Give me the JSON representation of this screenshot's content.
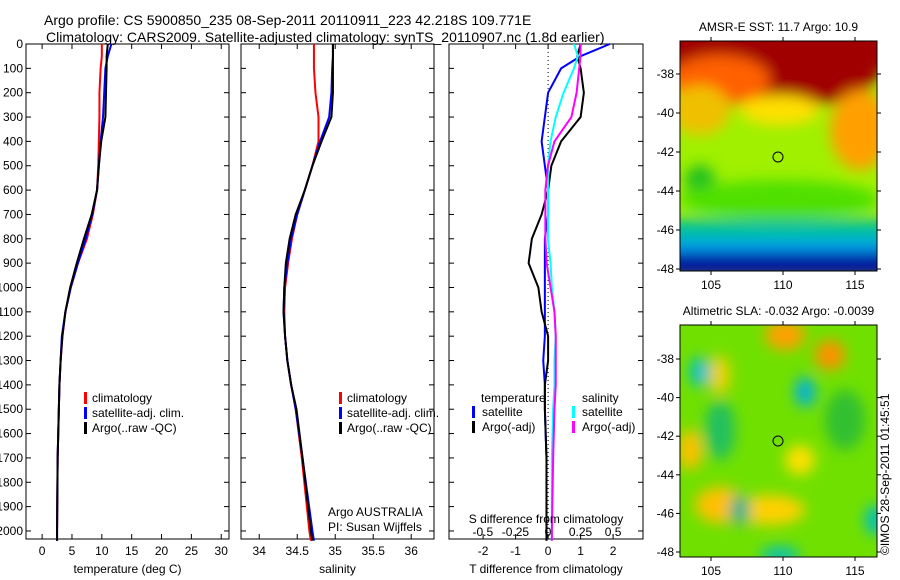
{
  "title_line1": "Argo profile: CS 5900850_235 08-Sep-2011 20110911_223 42.218S 109.771E",
  "title_line2": "Climatology: CARS2009. Satellite-adjusted climatology: synTS_20110907.nc (1.8d earlier)",
  "watermark": "©IMOS 28-Sep-2011 01:45:51",
  "colors": {
    "climatology": "#ff0000",
    "satellite": "#0000ff",
    "argo": "#000000",
    "s_satellite": "#00ffff",
    "s_argo": "#ff00ff"
  },
  "chart_data": [
    {
      "type": "line",
      "xlabel": "temperature (deg C)",
      "ylabel": "",
      "xlim": [
        -2.7,
        31.3
      ],
      "ylim": [
        2033,
        0
      ],
      "xticks": [
        0,
        5,
        10,
        15,
        20,
        25,
        30
      ],
      "yticks": [
        0,
        100,
        200,
        300,
        400,
        500,
        600,
        700,
        800,
        900,
        1000,
        1100,
        1200,
        1300,
        1400,
        1500,
        1600,
        1700,
        1800,
        1900,
        2000
      ],
      "legend": [
        "climatology",
        "satellite-adj. clim.",
        "Argo(..raw -QC)"
      ],
      "legend_placement": "lower-center",
      "depth": [
        0,
        50,
        100,
        200,
        300,
        400,
        500,
        600,
        700,
        800,
        900,
        1000,
        1100,
        1200,
        1300,
        1400,
        1500,
        1700,
        2000,
        2040
      ],
      "series": [
        {
          "name": "climatology",
          "values": [
            10,
            10,
            9.8,
            9.6,
            9.6,
            9.5,
            9.4,
            9.2,
            8.5,
            7.5,
            6.0,
            4.8,
            3.9,
            3.4,
            3.1,
            2.9,
            2.8,
            2.6,
            2.5,
            2.5
          ]
        },
        {
          "name": "satellite-adj. clim.",
          "values": [
            11.6,
            11,
            10.6,
            10.4,
            10.2,
            9.8,
            9.5,
            9.2,
            8.4,
            7.3,
            6.0,
            4.8,
            3.9,
            3.3,
            3.1,
            2.9,
            2.8,
            2.6,
            2.5,
            2.5
          ]
        },
        {
          "name": "Argo(..raw -QC)",
          "values": [
            11,
            10.8,
            10.8,
            10.7,
            10.6,
            9.9,
            9.5,
            9.2,
            8.3,
            7.0,
            5.8,
            4.7,
            3.9,
            3.4,
            3.1,
            2.9,
            2.8,
            2.6,
            2.5,
            2.5
          ]
        }
      ]
    },
    {
      "type": "line",
      "xlabel": "salinity",
      "xlim": [
        33.76,
        36.3
      ],
      "ylim": [
        2033,
        0
      ],
      "xticks": [
        34,
        34.5,
        35,
        35.5,
        36
      ],
      "xticklabels": [
        "34",
        "34.5",
        "35",
        "35.5",
        "36"
      ],
      "legend": [
        "climatology",
        "satellite-adj. clim.",
        "Argo(..raw -QC)"
      ],
      "annotation": [
        "Argo AUSTRALIA",
        "PI: Susan Wijffels"
      ],
      "depth": [
        0,
        50,
        100,
        200,
        300,
        400,
        500,
        600,
        700,
        800,
        900,
        1000,
        1100,
        1200,
        1300,
        1400,
        1500,
        1700,
        2000,
        2040
      ],
      "series": [
        {
          "name": "climatology",
          "values": [
            34.72,
            34.72,
            34.72,
            34.74,
            34.78,
            34.78,
            34.7,
            34.6,
            34.5,
            34.43,
            34.38,
            34.34,
            34.33,
            34.34,
            34.37,
            34.42,
            34.48,
            34.56,
            34.66,
            34.68
          ]
        },
        {
          "name": "satellite-adj. clim.",
          "values": [
            34.97,
            34.97,
            34.96,
            34.95,
            34.92,
            34.8,
            34.7,
            34.6,
            34.5,
            34.42,
            34.37,
            34.33,
            34.32,
            34.34,
            34.37,
            34.42,
            34.48,
            34.57,
            34.7,
            34.72
          ]
        },
        {
          "name": "Argo(..raw -QC)",
          "values": [
            34.97,
            34.97,
            34.97,
            34.97,
            34.95,
            34.82,
            34.7,
            34.6,
            34.48,
            34.4,
            34.35,
            34.33,
            34.32,
            34.34,
            34.37,
            34.42,
            34.49,
            34.57,
            34.68,
            34.7
          ]
        }
      ]
    },
    {
      "type": "line",
      "xlabel": "T difference from climatology",
      "x2label": "S difference from climatology",
      "xlim": [
        -3.05,
        2.92
      ],
      "x2lim": [
        -0.76,
        0.73
      ],
      "ylim": [
        2033,
        0
      ],
      "xticks": [
        -2,
        -1,
        0,
        1,
        2
      ],
      "x2ticks": [
        -0.5,
        -0.25,
        0,
        0.25,
        0.5
      ],
      "x2ticklabels": [
        "-0.5",
        "-0.25",
        "0",
        "0.25",
        "0.5"
      ],
      "legend_headers": [
        "temperature",
        "salinity"
      ],
      "legend": [
        "satellite",
        "Argo(-adj)",
        "satellite",
        "Argo(-adj)"
      ],
      "depth": [
        0,
        50,
        100,
        200,
        300,
        400,
        500,
        600,
        700,
        800,
        900,
        1000,
        1100,
        1200,
        1300,
        1400,
        1500,
        1700,
        2000,
        2040
      ],
      "series": [
        {
          "name": "T satellite",
          "axis": "T",
          "values": [
            1.9,
            1.0,
            0.4,
            0.0,
            -0.1,
            -0.2,
            -0.1,
            0,
            0,
            -0.1,
            -0.1,
            -0.1,
            -0.1,
            -0.1,
            -0.15,
            -0.1,
            -0.1,
            -0.05,
            -0.05,
            -0.05
          ]
        },
        {
          "name": "T Argo(-adj)",
          "axis": "T",
          "values": [
            1.0,
            0.9,
            1.0,
            1.1,
            1.0,
            0.4,
            0.1,
            0,
            -0.2,
            -0.5,
            -0.6,
            -0.3,
            -0.2,
            0,
            0,
            -0.1,
            -0.1,
            -0.05,
            -0.05,
            -0.05
          ]
        },
        {
          "name": "S satellite",
          "axis": "S",
          "values": [
            0.2,
            0.23,
            0.2,
            0.12,
            0.06,
            0.02,
            0,
            0,
            0,
            0,
            0.02,
            0.03,
            0.05,
            0.06,
            0.05,
            0.05,
            0.04,
            0.03,
            0.03,
            0.03
          ]
        },
        {
          "name": "S Argo(-adj)",
          "axis": "S",
          "values": [
            0.25,
            0.25,
            0.24,
            0.22,
            0.18,
            0.05,
            0,
            -0.02,
            -0.02,
            -0.02,
            -0.01,
            0.02,
            0.05,
            0.06,
            0.06,
            0.06,
            0.05,
            0.04,
            0.03,
            0.03
          ]
        }
      ]
    },
    {
      "type": "heatmap",
      "title": "AMSR-E SST: 11.7 Argo: 10.9",
      "xticks": [
        105,
        110,
        115
      ],
      "yticks": [
        -38,
        -40,
        -42,
        -44,
        -46,
        -48
      ],
      "marker": [
        109.771,
        -42.218
      ]
    },
    {
      "type": "heatmap",
      "title": "Altimetric SLA: -0.032 Argo: -0.0039",
      "xticks": [
        105,
        110,
        115
      ],
      "yticks": [
        -38,
        -40,
        -42,
        -44,
        -46,
        -48
      ],
      "marker": [
        109.771,
        -42.218
      ]
    }
  ]
}
